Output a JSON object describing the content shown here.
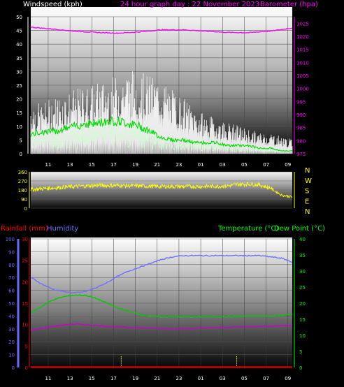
{
  "header": {
    "wind_title": "Windspeed (kph)",
    "graph_title": "24 hour graph day : 22 November 2023",
    "baro_title": "Barometer (hpa)"
  },
  "lower_header": {
    "rain_title": "Rainfall (mm)",
    "hum_title": "Humidity",
    "temp_title": "Temperature (°C)",
    "dew_title": "Dew Point (°C)"
  },
  "colors": {
    "wind_gust": "#ffffff",
    "wind_avg": "#00dd00",
    "wind_base": "#ccffcc",
    "barometer": "#ff00ff",
    "direction": "#ffff00",
    "humidity": "#7070ff",
    "temperature": "#00cc00",
    "dewpoint": "#cc00cc",
    "rain": "#ff0000",
    "rain_axis": "#ff0000",
    "humidity_axis": "#6a6aff",
    "temp_axis": "#00ff00"
  },
  "chart_data": [
    {
      "type": "line",
      "title": "24 hour graph day : 22 November 2023",
      "x_ticks": [
        "11",
        "13",
        "15",
        "17",
        "19",
        "21",
        "23",
        "01",
        "03",
        "05",
        "07",
        "09"
      ],
      "y_left": {
        "label": "Windspeed (kph)",
        "ticks": [
          "0",
          "5",
          "10",
          "15",
          "20",
          "25",
          "30",
          "35",
          "40",
          "45",
          "50"
        ],
        "range": [
          0,
          50
        ]
      },
      "y_right": {
        "label": "Barometer (hpa)",
        "ticks": [
          "975",
          "980",
          "985",
          "990",
          "995",
          "1000",
          "1005",
          "1010",
          "1015",
          "1020",
          "1025"
        ],
        "range": [
          975,
          1027.5
        ]
      },
      "series": [
        {
          "name": "Windspeed (kph)",
          "kind": "gust",
          "x_hours": [
            0,
            1,
            2,
            3,
            4,
            5,
            6,
            7,
            8,
            9,
            10,
            11,
            12,
            13,
            14,
            15,
            16,
            17,
            18,
            19,
            20,
            21,
            22,
            23,
            24
          ],
          "values": [
            15,
            14,
            16,
            17,
            18,
            19,
            20,
            21,
            22,
            24,
            23,
            22,
            21,
            18,
            16,
            13,
            11,
            10,
            9,
            8,
            7,
            6,
            6,
            5,
            4
          ]
        },
        {
          "name": "Windspeed (kph)",
          "kind": "average",
          "x_hours": [
            0,
            1,
            2,
            3,
            4,
            5,
            6,
            7,
            8,
            9,
            10,
            11,
            12,
            13,
            14,
            15,
            16,
            17,
            18,
            19,
            20,
            21,
            22,
            23,
            24
          ],
          "values": [
            7,
            8,
            8,
            9,
            10,
            11,
            11,
            12,
            12,
            11,
            10,
            8,
            6,
            5,
            5,
            4,
            4,
            4,
            3,
            3,
            3,
            2,
            2,
            1,
            1
          ]
        },
        {
          "name": "Barometer (hpa)",
          "x_hours": [
            0,
            2,
            4,
            6,
            8,
            10,
            12,
            14,
            16,
            18,
            20,
            22,
            24
          ],
          "values": [
            1023.5,
            1022.8,
            1022,
            1021.5,
            1021.2,
            1021.7,
            1022.5,
            1022.5,
            1022.0,
            1021.5,
            1021.4,
            1022.0,
            1023.2
          ]
        }
      ]
    },
    {
      "type": "line",
      "y_ticks": [
        "360",
        "270",
        "180",
        "90",
        "0"
      ],
      "y_range": [
        0,
        360
      ],
      "compass": [
        "N",
        "W",
        "S",
        "E",
        "N"
      ],
      "series": [
        {
          "name": "Wind direction",
          "x_hours": [
            0,
            2,
            4,
            6,
            8,
            10,
            12,
            14,
            16,
            18,
            19,
            20,
            21,
            22,
            23,
            24
          ],
          "values": [
            185,
            200,
            215,
            225,
            225,
            220,
            215,
            215,
            215,
            220,
            235,
            240,
            230,
            200,
            130,
            110
          ]
        }
      ]
    },
    {
      "type": "line",
      "x_ticks": [
        "11",
        "13",
        "15",
        "17",
        "19",
        "21",
        "23",
        "01",
        "03",
        "05",
        "07",
        "09"
      ],
      "y_rain": {
        "label": "Rainfall (mm)",
        "ticks": [
          "0",
          "5",
          "10",
          "15",
          "20",
          "25",
          "30"
        ],
        "range": [
          0,
          30
        ]
      },
      "y_hum": {
        "label": "Humidity",
        "ticks": [
          "0",
          "10",
          "20",
          "30",
          "40",
          "50",
          "60",
          "70",
          "80",
          "90",
          "100"
        ],
        "range": [
          0,
          100
        ]
      },
      "y_temp": {
        "label": "Temperature (°C)",
        "ticks": [
          "0",
          "5",
          "10",
          "15",
          "20",
          "25",
          "30",
          "35",
          "40"
        ],
        "range": [
          0,
          40
        ]
      },
      "series": [
        {
          "name": "Humidity",
          "x_hours": [
            0,
            1,
            2,
            3,
            4,
            5,
            6,
            7,
            8,
            9,
            10,
            11,
            12,
            13,
            14,
            15,
            16,
            17,
            18,
            19,
            20,
            21,
            22,
            23,
            24
          ],
          "values": [
            70,
            65,
            61,
            59,
            58,
            59,
            62,
            66,
            71,
            75,
            78,
            81,
            84,
            86,
            87,
            87,
            87,
            87,
            87,
            87,
            87,
            87,
            86,
            85,
            82
          ]
        },
        {
          "name": "Temperature (°C)",
          "x_hours": [
            0,
            1,
            2,
            3,
            4,
            5,
            6,
            7,
            8,
            9,
            10,
            11,
            12,
            13,
            14,
            15,
            16,
            17,
            18,
            19,
            20,
            21,
            22,
            23,
            24
          ],
          "values": [
            17,
            19,
            21,
            22,
            22.5,
            22.5,
            21.5,
            20,
            18.5,
            17.5,
            16.5,
            16.0,
            15.8,
            15.8,
            15.8,
            15.8,
            15.8,
            15.8,
            15.8,
            15.9,
            16,
            16,
            16,
            16.2,
            16.5
          ]
        },
        {
          "name": "Dew Point (°C)",
          "x_hours": [
            0,
            1,
            2,
            3,
            4,
            5,
            6,
            7,
            8,
            9,
            10,
            11,
            12,
            13,
            14,
            15,
            16,
            17,
            18,
            19,
            20,
            21,
            22,
            23,
            24
          ],
          "values": [
            11.5,
            12.2,
            12.8,
            13.2,
            13.5,
            13.3,
            13.1,
            12.8,
            12.6,
            12.4,
            12.3,
            12.2,
            12.2,
            12.1,
            12.1,
            12.2,
            12.3,
            12.4,
            12.5,
            12.6,
            12.7,
            12.8,
            12.9,
            13.0,
            13.1
          ]
        },
        {
          "name": "Rainfall (mm)",
          "x_hours": [
            0,
            24
          ],
          "values": [
            0,
            0
          ]
        }
      ]
    }
  ]
}
